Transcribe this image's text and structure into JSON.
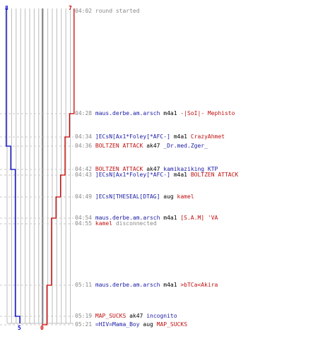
{
  "teams": {
    "blue": {
      "color": "#0000cc",
      "start_score": "8",
      "end_score": "5",
      "start_count": 8,
      "end_count": 5
    },
    "red": {
      "color": "#cc0000",
      "start_score": "7",
      "end_score": "0",
      "start_count": 7,
      "end_count": 0
    }
  },
  "colors": {
    "grid": "#bbbbbb",
    "center_line": "#777777",
    "dash": "#c8c8c8",
    "time": "#888888"
  },
  "events": [
    {
      "time": "04:02",
      "type": "system",
      "text": "round started",
      "blue": 8,
      "red": 7
    },
    {
      "time": "04:28",
      "type": "kill",
      "killer": "maus.derbe.am.arsch",
      "killer_team": "blue",
      "weapon": "m4a1",
      "victim": "-|SoI|- Mephisto",
      "victim_team": "red",
      "blue": 8,
      "red": 6
    },
    {
      "time": "04:34",
      "type": "kill",
      "killer": "]ECsN[Ax1*Foley[*AFC-]",
      "killer_team": "blue",
      "weapon": "m4a1",
      "victim": "CrazyAhmet",
      "victim_team": "red",
      "blue": 8,
      "red": 5
    },
    {
      "time": "04:36",
      "type": "kill",
      "killer": "BOLTZEN ATTACK",
      "killer_team": "red",
      "weapon": "ak47",
      "victim": "_Dr.med.Zger_",
      "victim_team": "blue",
      "blue": 7,
      "red": 5
    },
    {
      "time": "04:42",
      "type": "kill",
      "killer": "BOLTZEN ATTACK",
      "killer_team": "red",
      "weapon": "ak47",
      "victim": "kamikaziking  KTP",
      "victim_team": "blue",
      "blue": 6,
      "red": 5
    },
    {
      "time": "04:43",
      "type": "kill",
      "killer": "]ECsN[Ax1*Foley[*AFC-]",
      "killer_team": "blue",
      "weapon": "m4a1",
      "victim": "BOLTZEN ATTACK",
      "victim_team": "red",
      "blue": 6,
      "red": 4
    },
    {
      "time": "04:49",
      "type": "kill",
      "killer": "]ECsN[THESEAL[DTAG]",
      "killer_team": "blue",
      "weapon": "aug",
      "victim": "kamel",
      "victim_team": "red",
      "blue": 6,
      "red": 3
    },
    {
      "time": "04:54",
      "type": "kill",
      "killer": "maus.derbe.am.arsch",
      "killer_team": "blue",
      "weapon": "m4a1",
      "victim": "[S.A.M] 'VA",
      "victim_team": "red",
      "blue": 6,
      "red": 2
    },
    {
      "time": "04:55",
      "type": "disconnect",
      "player": "kamel",
      "player_team": "red",
      "text": "disconnected",
      "blue": 6,
      "red": 2
    },
    {
      "time": "05:11",
      "type": "kill",
      "killer": "maus.derbe.am.arsch",
      "killer_team": "blue",
      "weapon": "m4a1",
      "victim": ">bTCa<Akira",
      "victim_team": "red",
      "blue": 6,
      "red": 1
    },
    {
      "time": "05:19",
      "type": "kill",
      "killer": "MAP_SUCKS",
      "killer_team": "red",
      "weapon": "ak47",
      "victim": "incognito",
      "victim_team": "blue",
      "blue": 5,
      "red": 1
    },
    {
      "time": "05:21",
      "type": "kill",
      "killer": "=HIV=Mama_Boy",
      "killer_team": "blue",
      "weapon": "aug",
      "victim": "MAP_SUCKS",
      "victim_team": "red",
      "blue": 5,
      "red": 0
    }
  ]
}
